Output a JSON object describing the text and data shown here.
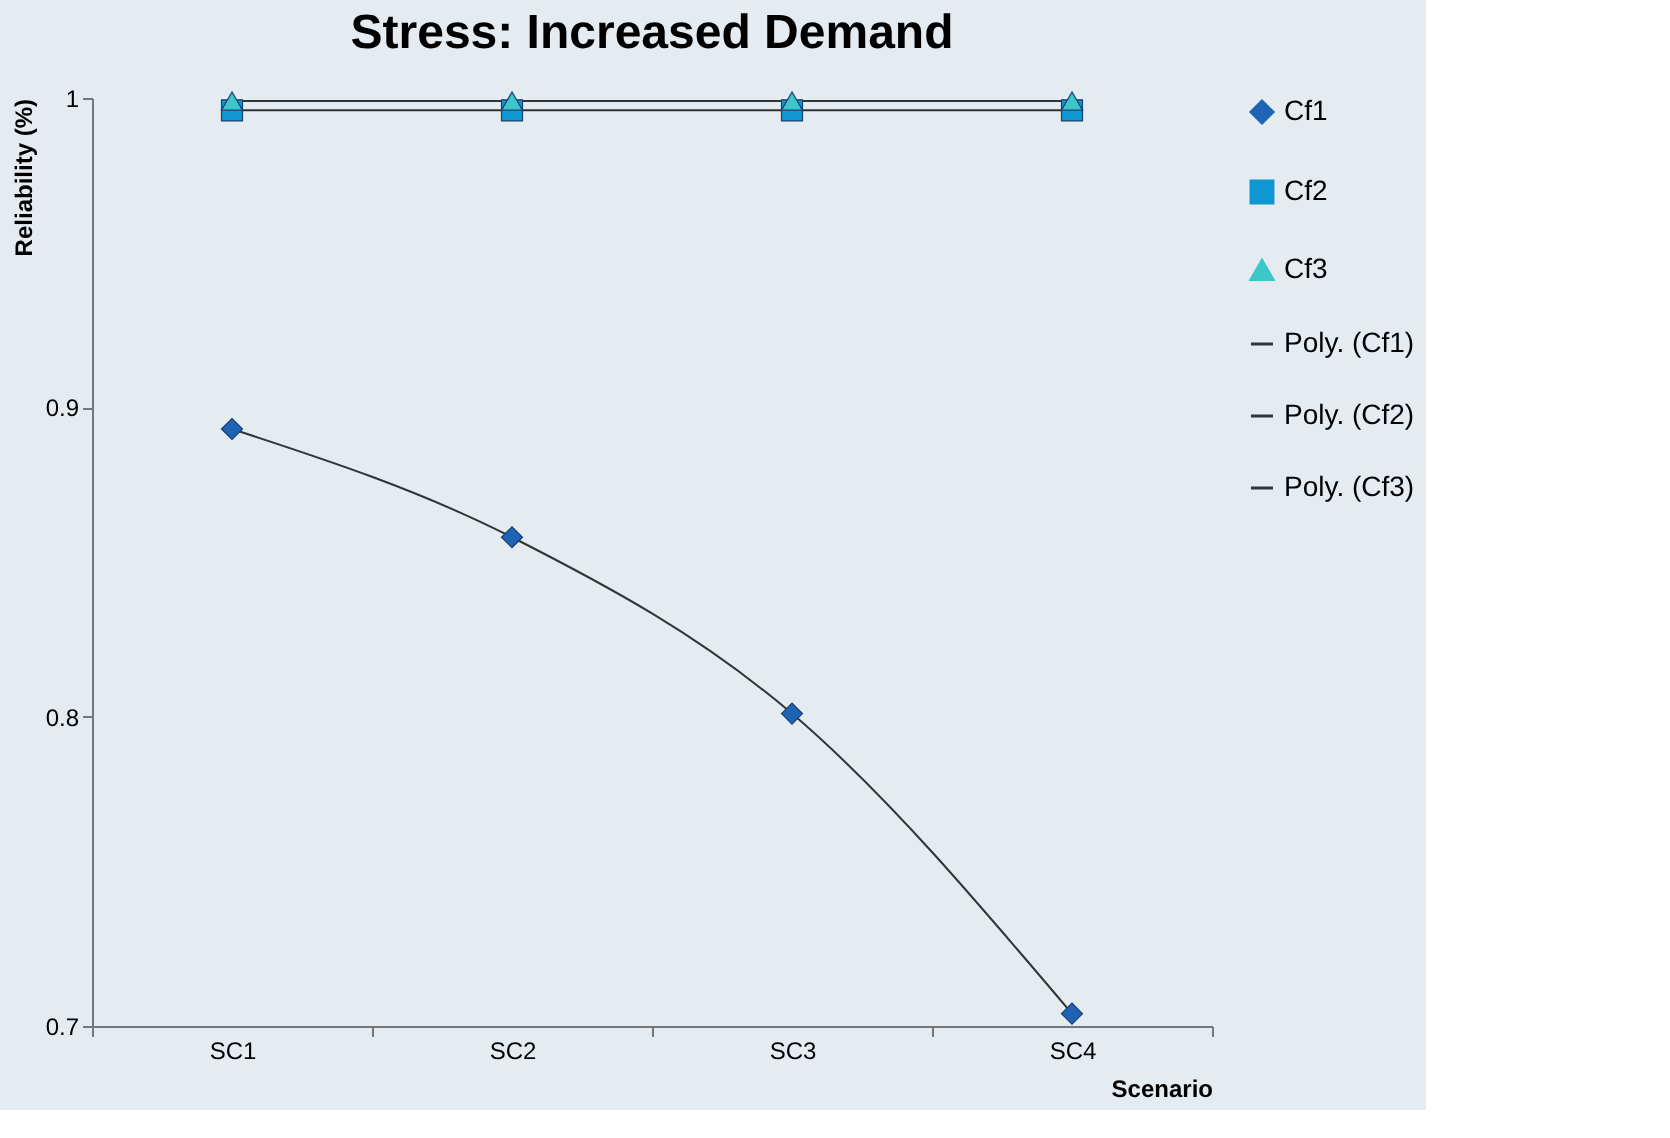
{
  "chart_data": {
    "type": "scatter",
    "title": "Stress: Increased Demand",
    "xlabel": "Scenario",
    "ylabel": "Reliability (%)",
    "categories": [
      "SC1",
      "SC2",
      "SC3",
      "SC4"
    ],
    "series": [
      {
        "name": "Cf1",
        "marker": "diamond",
        "color": "#1e64b4",
        "values": [
          0.893,
          0.858,
          0.801,
          0.704
        ]
      },
      {
        "name": "Cf2",
        "marker": "square",
        "color": "#1096d0",
        "values": [
          0.996,
          0.996,
          0.996,
          0.996
        ]
      },
      {
        "name": "Cf3",
        "marker": "triangle",
        "color": "#3cc8c8",
        "values": [
          0.999,
          0.999,
          0.999,
          0.999
        ]
      },
      {
        "name": "Poly. (Cf1)",
        "type": "line",
        "color": "#333333",
        "values": [
          0.893,
          0.858,
          0.801,
          0.704
        ]
      },
      {
        "name": "Poly. (Cf2)",
        "type": "line",
        "color": "#333333",
        "values": [
          0.996,
          0.996,
          0.996,
          0.996
        ]
      },
      {
        "name": "Poly. (Cf3)",
        "type": "line",
        "color": "#333333",
        "values": [
          0.999,
          0.999,
          0.999,
          0.999
        ]
      }
    ],
    "ylim": [
      0.7,
      1.0
    ],
    "yticks": [
      0.7,
      0.8,
      0.9,
      1
    ],
    "grid": false,
    "legend": "right"
  }
}
